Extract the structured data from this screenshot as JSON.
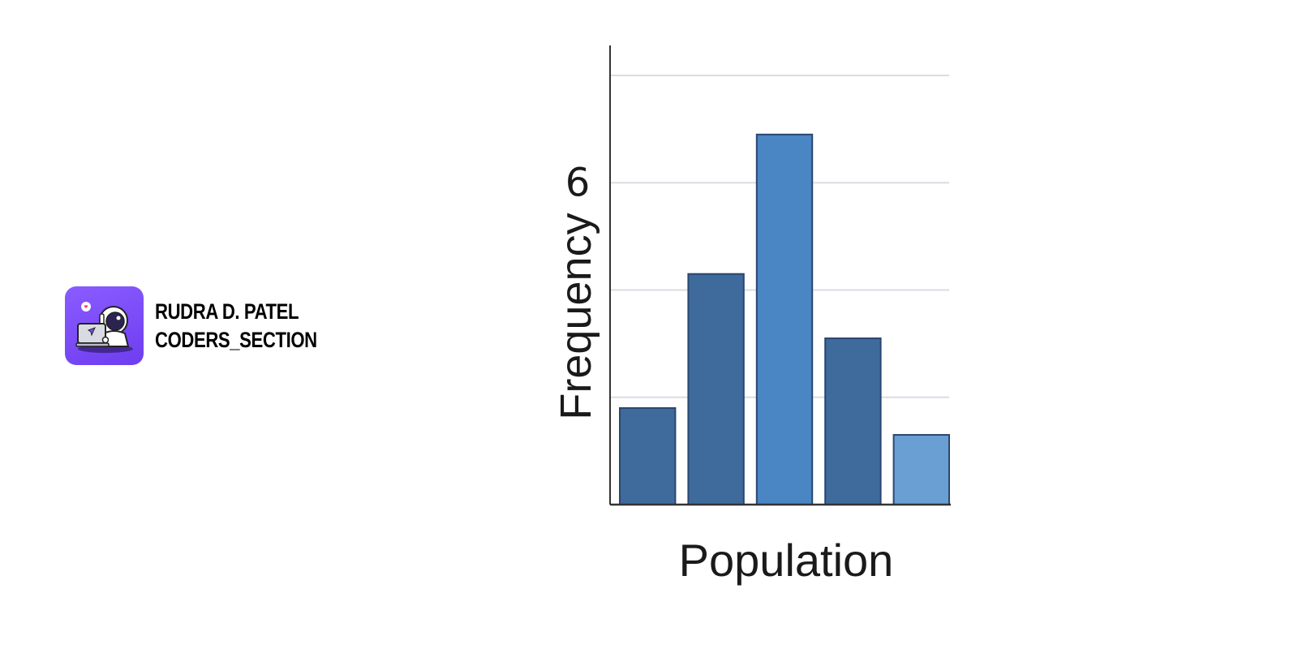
{
  "brand": {
    "name_line": "RUDRA D. PATEL",
    "handle_line": "CODERS_SECTION",
    "logo_icon": "astronaut-coder-icon",
    "logo_color": "#7c4dff"
  },
  "chart_data": {
    "type": "bar",
    "categories": [
      "",
      "",
      "",
      "",
      ""
    ],
    "values": [
      1.8,
      4.3,
      6.9,
      3.1,
      1.3
    ],
    "bar_colors": [
      "#3f6a9c",
      "#3f6a9c",
      "#4a85c4",
      "#3f6a9c",
      "#6a9fd4"
    ],
    "title": "",
    "xlabel": "Population",
    "ylabel": "Frequency",
    "y_tick_labels": [
      {
        "value": 6,
        "label": "6"
      }
    ],
    "ylim": [
      0,
      8.5
    ],
    "grid_values": [
      2,
      4,
      6,
      8
    ],
    "grid": true,
    "legend": "none"
  }
}
